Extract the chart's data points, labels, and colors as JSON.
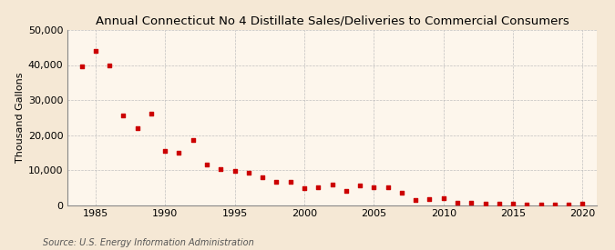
{
  "title": "Annual Connecticut No 4 Distillate Sales/Deliveries to Commercial Consumers",
  "ylabel": "Thousand Gallons",
  "source": "Source: U.S. Energy Information Administration",
  "background_color": "#f5e8d5",
  "plot_background_color": "#fdf6ec",
  "marker_color": "#cc0000",
  "years": [
    1984,
    1985,
    1986,
    1987,
    1988,
    1989,
    1990,
    1991,
    1992,
    1993,
    1994,
    1995,
    1996,
    1997,
    1998,
    1999,
    2000,
    2001,
    2002,
    2003,
    2004,
    2005,
    2006,
    2007,
    2008,
    2009,
    2010,
    2011,
    2012,
    2013,
    2014,
    2015,
    2016,
    2017,
    2018,
    2019,
    2020
  ],
  "values": [
    39500,
    44000,
    40000,
    25500,
    22000,
    26000,
    15500,
    15000,
    18500,
    11500,
    10200,
    9800,
    9200,
    8000,
    6500,
    6500,
    4900,
    5000,
    5800,
    4000,
    5500,
    5000,
    5000,
    3400,
    1400,
    1600,
    2000,
    700,
    700,
    500,
    500,
    300,
    200,
    200,
    100,
    200,
    500
  ],
  "xlim": [
    1983,
    2021
  ],
  "ylim": [
    0,
    50000
  ],
  "yticks": [
    0,
    10000,
    20000,
    30000,
    40000,
    50000
  ],
  "xticks": [
    1985,
    1990,
    1995,
    2000,
    2005,
    2010,
    2015,
    2020
  ],
  "title_fontsize": 9.5,
  "label_fontsize": 8,
  "tick_fontsize": 8,
  "source_fontsize": 7
}
